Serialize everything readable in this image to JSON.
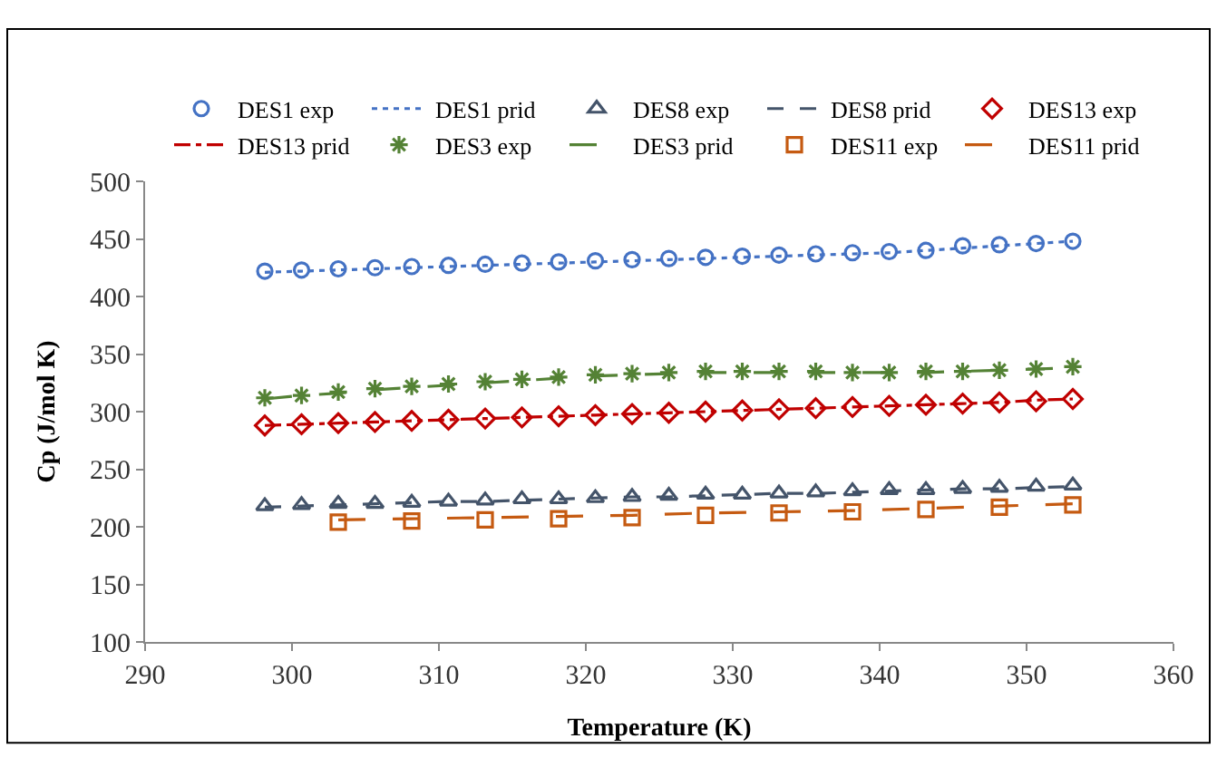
{
  "chart_data": {
    "type": "scatter",
    "xlabel": "Temperature (K)",
    "ylabel": "Cp (J/mol K)",
    "xlim": [
      290,
      360
    ],
    "ylim": [
      100,
      500
    ],
    "xticks": [
      290,
      300,
      310,
      320,
      330,
      340,
      350,
      360
    ],
    "yticks": [
      100,
      150,
      200,
      250,
      300,
      350,
      400,
      450,
      500
    ],
    "legend": "top",
    "series": [
      {
        "name": "DES1 exp",
        "marker": "circle",
        "color": "#4472c4",
        "x": [
          298.15,
          300.65,
          303.15,
          305.65,
          308.15,
          310.65,
          313.15,
          315.65,
          318.15,
          320.65,
          323.15,
          325.65,
          328.15,
          330.65,
          333.15,
          335.65,
          338.15,
          340.65,
          343.15,
          345.65,
          348.15,
          350.65,
          353.15
        ],
        "values": [
          422,
          423,
          424,
          425,
          426,
          427,
          428,
          429,
          430,
          431,
          432,
          433,
          434,
          435,
          436,
          437,
          438,
          439,
          440,
          444,
          445,
          446,
          448
        ]
      },
      {
        "name": "DES1 prid",
        "type": "line",
        "line_style": "dotted",
        "color": "#4472c4",
        "x": [
          298.15,
          300.65,
          303.15,
          305.65,
          308.15,
          310.65,
          313.15,
          315.65,
          318.15,
          320.65,
          323.15,
          325.65,
          328.15,
          330.65,
          333.15,
          335.65,
          338.15,
          340.65,
          343.15,
          345.65,
          348.15,
          350.65,
          353.15
        ],
        "values": [
          421,
          422,
          423,
          424,
          425,
          426,
          427,
          428,
          429,
          430,
          431,
          432,
          433,
          434,
          435,
          436,
          437,
          438,
          440,
          442,
          444,
          446,
          448
        ]
      },
      {
        "name": "DES8 exp",
        "marker": "triangle",
        "color": "#44546a",
        "x": [
          298.15,
          300.65,
          303.15,
          305.65,
          308.15,
          310.65,
          313.15,
          315.65,
          318.15,
          320.65,
          323.15,
          325.65,
          328.15,
          330.65,
          333.15,
          335.65,
          338.15,
          340.65,
          343.15,
          345.65,
          348.15,
          350.65,
          353.15
        ],
        "values": [
          218,
          219,
          220,
          220,
          221,
          222,
          223,
          224,
          224,
          225,
          226,
          227,
          228,
          228,
          229,
          230,
          231,
          232,
          232,
          233,
          234,
          235,
          236
        ]
      },
      {
        "name": "DES8 prid",
        "type": "line",
        "line_style": "dashed",
        "color": "#44546a",
        "x": [
          298.15,
          300.65,
          303.15,
          305.65,
          308.15,
          310.65,
          313.15,
          315.65,
          318.15,
          320.65,
          323.15,
          325.65,
          328.15,
          330.65,
          333.15,
          335.65,
          338.15,
          340.65,
          343.15,
          345.65,
          348.15,
          350.65,
          353.15
        ],
        "values": [
          217,
          218,
          219,
          220,
          221,
          222,
          222,
          223,
          224,
          225,
          226,
          226,
          227,
          228,
          229,
          229,
          230,
          231,
          232,
          233,
          233,
          234,
          235
        ]
      },
      {
        "name": "DES13 exp",
        "marker": "diamond",
        "color": "#c00000",
        "x": [
          298.15,
          300.65,
          303.15,
          305.65,
          308.15,
          310.65,
          313.15,
          315.65,
          318.15,
          320.65,
          323.15,
          325.65,
          328.15,
          330.65,
          333.15,
          335.65,
          338.15,
          340.65,
          343.15,
          345.65,
          348.15,
          350.65,
          353.15
        ],
        "values": [
          288,
          289,
          290,
          291,
          292,
          293,
          294,
          295,
          296,
          297,
          298,
          299,
          300,
          301,
          302,
          303,
          304,
          305,
          306,
          307,
          308,
          309,
          311
        ]
      },
      {
        "name": "DES13 prid",
        "type": "line",
        "line_style": "dashdot",
        "color": "#c00000",
        "x": [
          298.15,
          300.65,
          303.15,
          305.65,
          308.15,
          310.65,
          313.15,
          315.65,
          318.15,
          320.65,
          323.15,
          325.65,
          328.15,
          330.65,
          333.15,
          335.65,
          338.15,
          340.65,
          343.15,
          345.65,
          348.15,
          350.65,
          353.15
        ],
        "values": [
          288,
          289,
          290,
          291,
          292,
          293,
          294,
          295,
          296,
          297,
          298,
          299,
          300,
          301,
          302,
          303,
          304,
          305,
          306,
          307,
          308,
          310,
          311
        ]
      },
      {
        "name": "DES3 exp",
        "marker": "cross",
        "color": "#548235",
        "x": [
          298.15,
          300.65,
          303.15,
          305.65,
          308.15,
          310.65,
          313.15,
          315.65,
          318.15,
          320.65,
          323.15,
          325.65,
          328.15,
          330.65,
          333.15,
          335.65,
          338.15,
          340.65,
          343.15,
          345.65,
          348.15,
          350.65,
          353.15
        ],
        "values": [
          312,
          314,
          317,
          320,
          322,
          324,
          326,
          328,
          330,
          332,
          333,
          334,
          335,
          335,
          335,
          335,
          334,
          334,
          335,
          335,
          336,
          337,
          339
        ]
      },
      {
        "name": "DES3 prid",
        "type": "line",
        "line_style": "longdash",
        "color": "#548235",
        "x": [
          298.15,
          300.65,
          303.15,
          305.65,
          308.15,
          310.65,
          313.15,
          315.65,
          318.15,
          320.65,
          323.15,
          325.65,
          328.15,
          330.65,
          333.15,
          335.65,
          338.15,
          340.65,
          343.15,
          345.65,
          348.15,
          350.65,
          353.15
        ],
        "values": [
          311,
          314,
          316,
          319,
          321,
          323,
          325,
          327,
          329,
          331,
          332,
          333,
          334,
          334,
          334,
          334,
          334,
          334,
          334,
          335,
          336,
          337,
          338
        ]
      },
      {
        "name": "DES11 exp",
        "marker": "square",
        "color": "#c55a11",
        "x": [
          303.15,
          308.15,
          313.15,
          318.15,
          323.15,
          328.15,
          333.15,
          338.15,
          343.15,
          348.15,
          353.15
        ],
        "values": [
          204,
          205,
          206,
          207,
          208,
          210,
          212,
          213,
          215,
          217,
          219
        ]
      },
      {
        "name": "DES11 prid",
        "type": "line",
        "line_style": "longdash",
        "color": "#c55a11",
        "x": [
          303.15,
          308.15,
          313.15,
          318.15,
          323.15,
          328.15,
          333.15,
          338.15,
          343.15,
          348.15,
          353.15
        ],
        "values": [
          206,
          207,
          208,
          209,
          210,
          212,
          213,
          214,
          216,
          218,
          220
        ]
      }
    ]
  }
}
